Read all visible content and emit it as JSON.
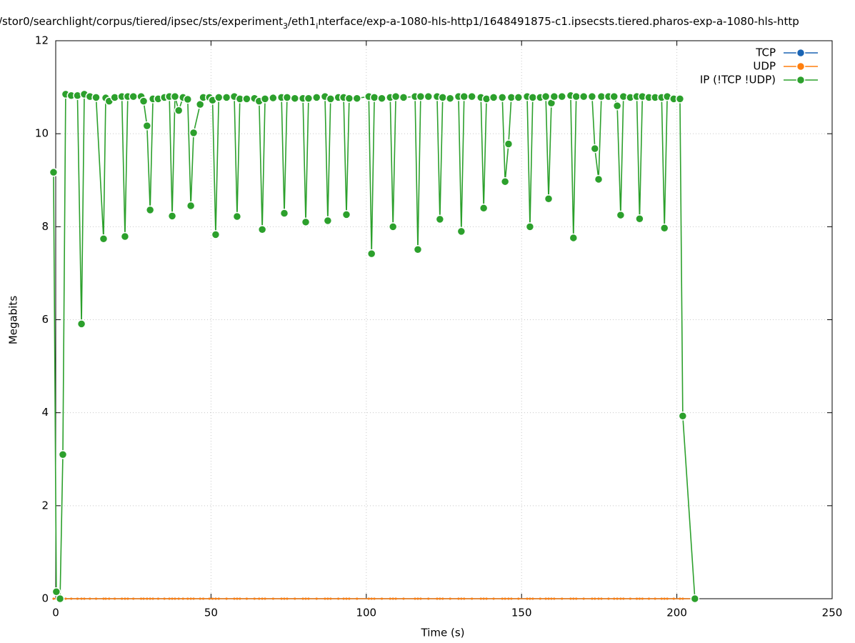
{
  "chart_data": {
    "type": "line",
    "title": [
      "/stor0/searchlight/corpus/tiered/ipsec/sts/experiment",
      "3",
      "/eth1",
      "i",
      "nterface/exp-a-1080-hls-http1/1648491875-c1.ipsecsts.tiered.pharos-exp-a-1080-hls-http"
    ],
    "x_label": "Time (s)",
    "y_label": "Megabits",
    "xlim": [
      0,
      250
    ],
    "xticks": [
      0,
      50,
      100,
      150,
      200,
      250
    ],
    "ylim": [
      0,
      12
    ],
    "yticks": [
      0,
      2,
      4,
      6,
      8,
      10,
      12
    ],
    "grid": true,
    "legend": "top-right",
    "x": [
      -0.7,
      0.2,
      1.4,
      2.3,
      3.2,
      5.0,
      7.0,
      8.3,
      9.2,
      11,
      13,
      15.4,
      16.1,
      17.2,
      19,
      21.3,
      22.3,
      23.2,
      25,
      27.5,
      28.3,
      29.4,
      30.4,
      31.3,
      33,
      35,
      36.6,
      37.5,
      38.4,
      39.6,
      41,
      42.5,
      43.5,
      44.4,
      46.5,
      47.5,
      49.5,
      50.5,
      51.5,
      52.5,
      55,
      57.5,
      58.4,
      59.3,
      61.5,
      64,
      65.5,
      66.5,
      67.4,
      70,
      72.7,
      73.6,
      74.5,
      77,
      79.6,
      80.5,
      81.4,
      84,
      86.7,
      87.6,
      88.5,
      91,
      92.7,
      93.6,
      94.5,
      97,
      100.8,
      101.7,
      102.6,
      105,
      107.7,
      108.6,
      109.5,
      112,
      115.7,
      116.6,
      117.5,
      120,
      122.8,
      123.7,
      124.6,
      127,
      129.7,
      130.6,
      131.5,
      134,
      136.9,
      137.8,
      138.7,
      141,
      143.8,
      144.7,
      145.8,
      146.7,
      149,
      151.8,
      152.7,
      153.6,
      156,
      157.8,
      158.7,
      159.6,
      160.5,
      163,
      165.8,
      166.7,
      167.6,
      170,
      172.7,
      173.6,
      174.8,
      175.7,
      178,
      179.8,
      180.8,
      181.9,
      182.8,
      185,
      187.1,
      188.0,
      188.9,
      191,
      193,
      195.1,
      196.0,
      196.9,
      199,
      201.0,
      201.9,
      205.8
    ],
    "series": [
      {
        "name": "TCP",
        "color": "#1a64b4",
        "values": [
          0,
          0,
          0,
          0,
          0,
          0,
          0,
          0,
          0,
          0,
          0,
          0,
          0,
          0,
          0,
          0,
          0,
          0,
          0,
          0,
          0,
          0,
          0,
          0,
          0,
          0,
          0,
          0,
          0,
          0,
          0,
          0,
          0,
          0,
          0,
          0,
          0,
          0,
          0,
          0,
          0,
          0,
          0,
          0,
          0,
          0,
          0,
          0,
          0,
          0,
          0,
          0,
          0,
          0,
          0,
          0,
          0,
          0,
          0,
          0,
          0,
          0,
          0,
          0,
          0,
          0,
          0,
          0,
          0,
          0,
          0,
          0,
          0,
          0,
          0,
          0,
          0,
          0,
          0,
          0,
          0,
          0,
          0,
          0,
          0,
          0,
          0,
          0,
          0,
          0,
          0,
          0,
          0,
          0,
          0,
          0,
          0,
          0,
          0,
          0,
          0,
          0,
          0,
          0,
          0,
          0,
          0,
          0,
          0,
          0,
          0,
          0,
          0,
          0,
          0,
          0,
          0,
          0,
          0,
          0,
          0,
          0,
          0,
          0,
          0,
          0,
          0,
          0,
          0,
          0
        ]
      },
      {
        "name": "UDP",
        "color": "#ff7f0e",
        "values": [
          0,
          0,
          0,
          0,
          0,
          0,
          0,
          0,
          0,
          0,
          0,
          0,
          0,
          0,
          0,
          0,
          0,
          0,
          0,
          0,
          0,
          0,
          0,
          0,
          0,
          0,
          0,
          0,
          0,
          0,
          0,
          0,
          0,
          0,
          0,
          0,
          0,
          0,
          0,
          0,
          0,
          0,
          0,
          0,
          0,
          0,
          0,
          0,
          0,
          0,
          0,
          0,
          0,
          0,
          0,
          0,
          0,
          0,
          0,
          0,
          0,
          0,
          0,
          0,
          0,
          0,
          0,
          0,
          0,
          0,
          0,
          0,
          0,
          0,
          0,
          0,
          0,
          0,
          0,
          0,
          0,
          0,
          0,
          0,
          0,
          0,
          0,
          0,
          0,
          0,
          0,
          0,
          0,
          0,
          0,
          0,
          0,
          0,
          0,
          0,
          0,
          0,
          0,
          0,
          0,
          0,
          0,
          0,
          0,
          0,
          0,
          0,
          0,
          0,
          0,
          0,
          0,
          0,
          0,
          0,
          0,
          0,
          0,
          0,
          0,
          0,
          0,
          0,
          0,
          0
        ]
      },
      {
        "name": "IP (!TCP  !UDP)",
        "color": "#2ca02c",
        "values": [
          9.17,
          0.15,
          0,
          3.1,
          10.85,
          10.82,
          10.82,
          5.91,
          10.85,
          10.8,
          10.78,
          7.74,
          10.77,
          10.7,
          10.78,
          10.8,
          7.79,
          10.8,
          10.8,
          10.8,
          10.7,
          10.17,
          8.36,
          10.75,
          10.75,
          10.78,
          10.8,
          8.23,
          10.8,
          10.5,
          10.78,
          10.74,
          8.45,
          10.02,
          10.63,
          10.78,
          10.78,
          10.72,
          7.83,
          10.78,
          10.78,
          10.8,
          8.22,
          10.75,
          10.75,
          10.76,
          10.7,
          7.94,
          10.75,
          10.77,
          10.78,
          8.29,
          10.78,
          10.76,
          10.76,
          8.1,
          10.76,
          10.78,
          10.8,
          8.13,
          10.75,
          10.78,
          10.78,
          8.26,
          10.76,
          10.76,
          10.8,
          7.42,
          10.78,
          10.76,
          10.78,
          8.0,
          10.8,
          10.78,
          10.8,
          7.51,
          10.8,
          10.8,
          10.8,
          8.16,
          10.78,
          10.76,
          10.8,
          7.9,
          10.8,
          10.8,
          10.78,
          8.4,
          10.75,
          10.78,
          10.78,
          8.97,
          9.78,
          10.78,
          10.78,
          10.8,
          8.0,
          10.78,
          10.78,
          10.8,
          8.6,
          10.66,
          10.8,
          10.8,
          10.82,
          7.76,
          10.8,
          10.8,
          10.8,
          9.68,
          9.02,
          10.8,
          10.8,
          10.8,
          10.6,
          8.25,
          10.8,
          10.78,
          10.8,
          8.17,
          10.8,
          10.78,
          10.78,
          10.78,
          7.97,
          10.8,
          10.75,
          10.75,
          3.93,
          0
        ]
      }
    ]
  }
}
